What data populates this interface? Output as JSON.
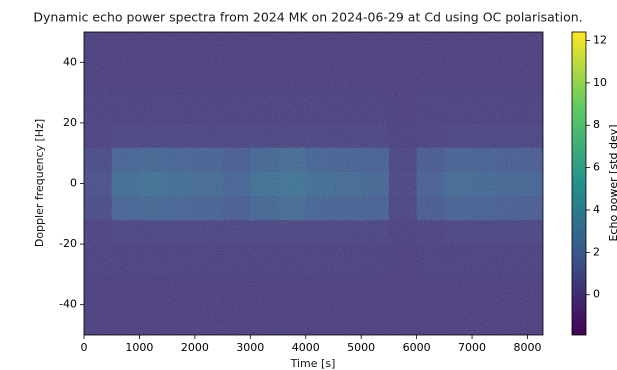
{
  "chart_data": {
    "type": "heatmap",
    "title": "Dynamic echo power spectra from 2024 MK on 2024-06-29 at Cd using OC polarisation.",
    "xlabel": "Time [s]",
    "ylabel": "Doppler frequency [Hz]",
    "colorbar_label": "Echo power [std dev]",
    "colormap": "viridis",
    "x_edges": [
      0,
      500,
      1000,
      1500,
      2000,
      2500,
      3000,
      3500,
      4000,
      4500,
      5000,
      5500,
      6000,
      6500,
      7000,
      7500,
      8000,
      8280
    ],
    "y_edges": [
      -50,
      -40,
      -30,
      -20,
      -12,
      -4,
      4,
      12,
      20,
      30,
      40,
      50
    ],
    "values": [
      [
        0.2,
        0.2,
        0.2,
        0.2,
        0.2,
        0.2,
        0.2,
        0.2,
        0.2,
        0.2,
        0.2,
        0.2,
        0.2,
        0.2,
        0.2,
        0.2,
        0.2
      ],
      [
        0.2,
        0.2,
        0.2,
        0.2,
        0.2,
        0.2,
        0.2,
        0.2,
        0.2,
        0.2,
        0.2,
        0.2,
        0.2,
        0.2,
        0.2,
        0.2,
        0.2
      ],
      [
        0.3,
        0.3,
        0.3,
        0.3,
        0.3,
        0.3,
        0.3,
        0.3,
        0.3,
        0.3,
        0.3,
        0.2,
        0.3,
        0.3,
        0.3,
        0.3,
        0.3
      ],
      [
        0.4,
        0.5,
        0.5,
        0.5,
        0.5,
        0.5,
        0.5,
        0.5,
        0.5,
        0.5,
        0.5,
        0.3,
        0.4,
        0.5,
        0.5,
        0.5,
        0.5
      ],
      [
        0.8,
        2.0,
        2.2,
        2.0,
        1.9,
        1.6,
        2.2,
        2.4,
        2.0,
        1.9,
        1.8,
        0.5,
        1.5,
        1.9,
        1.8,
        1.7,
        1.6
      ],
      [
        1.0,
        2.5,
        2.8,
        2.6,
        2.4,
        2.0,
        2.8,
        3.0,
        2.6,
        2.4,
        2.2,
        0.6,
        1.8,
        2.4,
        2.3,
        2.2,
        2.0
      ],
      [
        0.8,
        2.0,
        2.2,
        2.0,
        1.9,
        1.6,
        2.2,
        2.4,
        2.0,
        1.9,
        1.8,
        0.5,
        1.5,
        1.9,
        1.8,
        1.7,
        1.6
      ],
      [
        0.4,
        0.5,
        0.5,
        0.5,
        0.5,
        0.5,
        0.5,
        0.5,
        0.5,
        0.5,
        0.5,
        0.3,
        0.4,
        0.5,
        0.5,
        0.5,
        0.5
      ],
      [
        0.3,
        0.3,
        0.3,
        0.3,
        0.3,
        0.3,
        0.3,
        0.3,
        0.3,
        0.3,
        0.3,
        0.2,
        0.3,
        0.3,
        0.3,
        0.3,
        0.3
      ],
      [
        0.2,
        0.2,
        0.2,
        0.2,
        0.2,
        0.2,
        0.2,
        0.2,
        0.2,
        0.2,
        0.2,
        0.2,
        0.2,
        0.2,
        0.2,
        0.2,
        0.2
      ],
      [
        0.2,
        0.2,
        0.2,
        0.2,
        0.2,
        0.2,
        0.2,
        0.2,
        0.2,
        0.2,
        0.2,
        0.2,
        0.2,
        0.2,
        0.2,
        0.2,
        0.2
      ]
    ],
    "xlim": [
      0,
      8280
    ],
    "ylim": [
      -50,
      50
    ],
    "clim": [
      -1.9,
      12.4
    ],
    "xticks": [
      0,
      1000,
      2000,
      3000,
      4000,
      5000,
      6000,
      7000,
      8000
    ],
    "yticks": [
      -40,
      -20,
      0,
      20,
      40
    ],
    "cticks": [
      0,
      2,
      4,
      6,
      8,
      10,
      12
    ]
  }
}
